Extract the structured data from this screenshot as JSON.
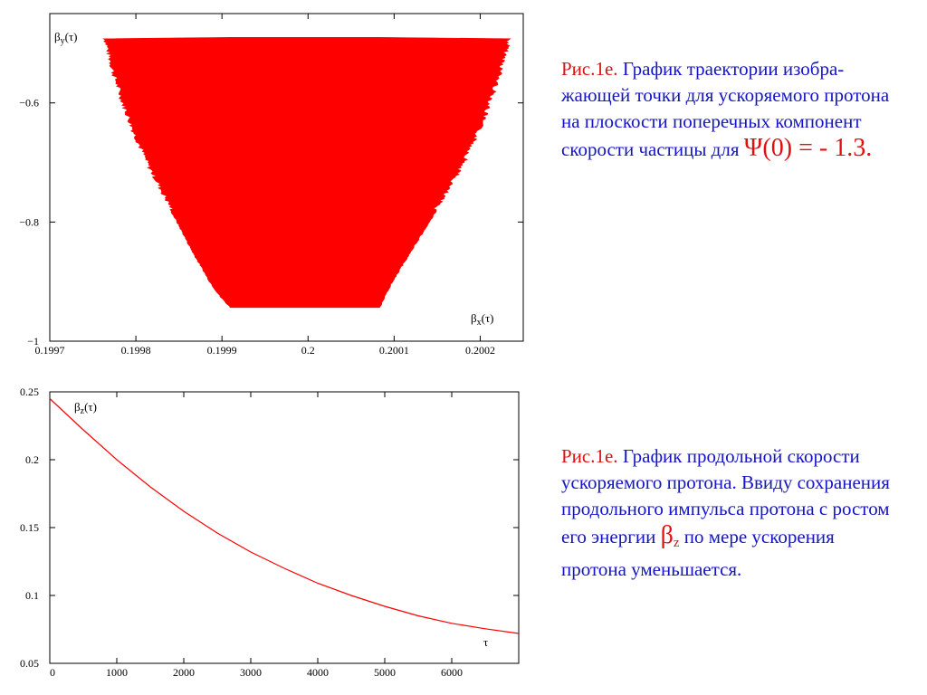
{
  "caption1": {
    "fig": "Рис.1е.",
    "text": "График траектории изобра-жающей точки для ускоряемого протона на плоскости поперечных компонент скорости частицы для",
    "psi": "Ψ(0) = - 1.3."
  },
  "caption2": {
    "fig": "Рис.1е.",
    "text_before": "График продольной скорости ускоряемого протона. Ввиду сохранения продольного импульса протона с ростом его энергии",
    "beta": "β",
    "beta_sub": "z",
    "text_after": "по мере ускорения протона уменьшается."
  },
  "chart_data": [
    {
      "type": "area",
      "xlabel": {
        "main": "β",
        "sub": "x",
        "arg": "(τ)"
      },
      "ylabel": {
        "main": "β",
        "sub": "y",
        "arg": "(τ)"
      },
      "xlim": [
        0.1997,
        0.20025
      ],
      "ylim": [
        -1.0,
        -0.45
      ],
      "xticks": [
        0.1997,
        0.1998,
        0.1999,
        0.2,
        0.2001,
        0.2002
      ],
      "xtick_labels": [
        "0.1997",
        "0.1998",
        "0.1999",
        "0.2",
        "0.2001",
        "0.2002"
      ],
      "yticks": [
        -1.0,
        -0.8,
        -0.6
      ],
      "ytick_labels": [
        "−1",
        "−0.8",
        "−0.6"
      ],
      "color": "#ff0000",
      "envelope": {
        "y": [
          -0.49,
          -0.55,
          -0.6,
          -0.65,
          -0.7,
          -0.75,
          -0.8,
          -0.85,
          -0.9,
          -0.925,
          -0.945
        ],
        "x_left": [
          0.199761,
          0.199771,
          0.199782,
          0.199795,
          0.19981,
          0.199828,
          0.199847,
          0.199865,
          0.199885,
          0.199897,
          0.19991
        ],
        "x_right": [
          0.200237,
          0.200226,
          0.200214,
          0.2002,
          0.200184,
          0.200163,
          0.200142,
          0.20012,
          0.200099,
          0.20009,
          0.200084
        ]
      }
    },
    {
      "type": "line",
      "xlabel": "τ",
      "ylabel": {
        "main": "β",
        "sub": "z",
        "arg": "(τ)"
      },
      "xlim": [
        0,
        7000
      ],
      "ylim": [
        0.05,
        0.25
      ],
      "xticks": [
        0,
        1000,
        2000,
        3000,
        4000,
        5000,
        6000
      ],
      "xtick_labels": [
        "0",
        "1000",
        "2000",
        "3000",
        "4000",
        "5000",
        "6000"
      ],
      "yticks": [
        0.05,
        0.1,
        0.15,
        0.2,
        0.25
      ],
      "ytick_labels": [
        "0.05",
        "0.1",
        "0.15",
        "0.2",
        "0.25"
      ],
      "color": "#ff0000",
      "x": [
        0,
        500,
        1000,
        1500,
        2000,
        2500,
        3000,
        3500,
        4000,
        4500,
        5000,
        5500,
        6000,
        6500,
        7000
      ],
      "y": [
        0.245,
        0.222,
        0.2,
        0.18,
        0.162,
        0.146,
        0.132,
        0.12,
        0.109,
        0.1,
        0.092,
        0.085,
        0.0795,
        0.0755,
        0.072
      ]
    }
  ]
}
